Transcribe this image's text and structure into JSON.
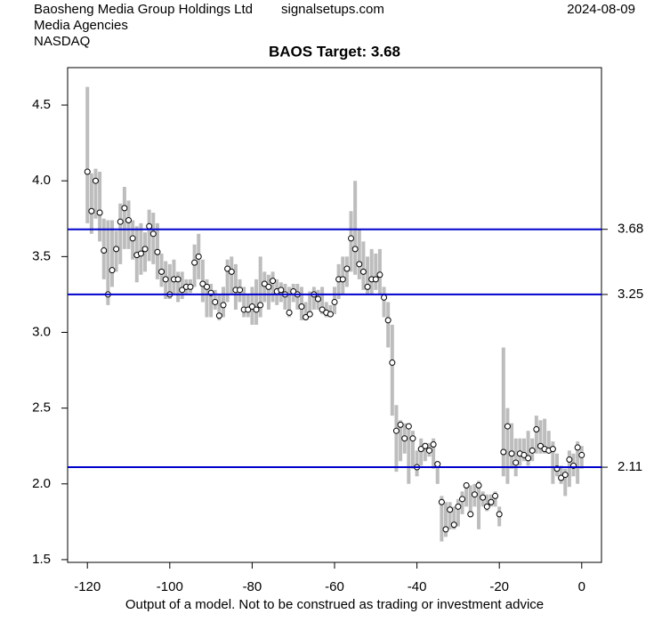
{
  "header": {
    "company": "Baosheng Media Group Holdings Ltd",
    "site": "signalsetups.com",
    "date": "2024-08-09",
    "sector": "Media Agencies",
    "exchange": "NASDAQ"
  },
  "chart_data": {
    "type": "range",
    "title": "BAOS Target: 3.68",
    "xlabel": "Output of a model. Not to be construed as trading or investment advice",
    "x": [
      -120,
      -119,
      -118,
      -117,
      -116,
      -115,
      -114,
      -113,
      -112,
      -111,
      -110,
      -109,
      -108,
      -107,
      -106,
      -105,
      -104,
      -103,
      -102,
      -101,
      -100,
      -99,
      -98,
      -97,
      -96,
      -95,
      -94,
      -93,
      -92,
      -91,
      -90,
      -89,
      -88,
      -87,
      -86,
      -85,
      -84,
      -83,
      -82,
      -81,
      -80,
      -79,
      -78,
      -77,
      -76,
      -75,
      -74,
      -73,
      -72,
      -71,
      -70,
      -69,
      -68,
      -67,
      -66,
      -65,
      -64,
      -63,
      -62,
      -61,
      -60,
      -59,
      -58,
      -57,
      -56,
      -55,
      -54,
      -53,
      -52,
      -51,
      -50,
      -49,
      -48,
      -47,
      -46,
      -45,
      -44,
      -43,
      -42,
      -41,
      -40,
      -39,
      -38,
      -37,
      -36,
      -35,
      -34,
      -33,
      -32,
      -31,
      -30,
      -29,
      -28,
      -27,
      -26,
      -25,
      -24,
      -23,
      -22,
      -21,
      -20,
      -19,
      -18,
      -17,
      -16,
      -15,
      -14,
      -13,
      -12,
      -11,
      -10,
      -9,
      -8,
      -7,
      -6,
      -5,
      -4,
      -3,
      -2,
      -1,
      0
    ],
    "close": [
      4.06,
      3.8,
      4.0,
      3.79,
      3.54,
      3.25,
      3.41,
      3.55,
      3.73,
      3.82,
      3.74,
      3.62,
      3.51,
      3.52,
      3.55,
      3.7,
      3.65,
      3.53,
      3.4,
      3.35,
      3.25,
      3.35,
      3.35,
      3.28,
      3.3,
      3.3,
      3.46,
      3.5,
      3.32,
      3.3,
      3.26,
      3.2,
      3.11,
      3.18,
      3.42,
      3.4,
      3.28,
      3.28,
      3.15,
      3.15,
      3.17,
      3.15,
      3.18,
      3.32,
      3.3,
      3.34,
      3.27,
      3.28,
      3.25,
      3.13,
      3.27,
      3.25,
      3.17,
      3.1,
      3.12,
      3.25,
      3.22,
      3.15,
      3.13,
      3.12,
      3.2,
      3.35,
      3.35,
      3.42,
      3.62,
      3.55,
      3.45,
      3.4,
      3.3,
      3.35,
      3.35,
      3.38,
      3.23,
      3.08,
      2.8,
      2.35,
      2.39,
      2.3,
      2.38,
      2.3,
      2.11,
      2.23,
      2.25,
      2.22,
      2.26,
      2.13,
      1.88,
      1.7,
      1.83,
      1.73,
      1.85,
      1.9,
      1.99,
      1.8,
      1.93,
      1.99,
      1.91,
      1.85,
      1.88,
      1.92,
      1.8,
      2.21,
      2.38,
      2.2,
      2.14,
      2.2,
      2.19,
      2.17,
      2.22,
      2.36,
      2.25,
      2.23,
      2.22,
      2.23,
      2.1,
      2.04,
      2.06,
      2.16,
      2.12,
      2.24,
      2.19
    ],
    "high": [
      4.62,
      4.05,
      4.08,
      4.06,
      3.75,
      3.74,
      3.74,
      3.67,
      3.85,
      3.96,
      3.87,
      3.74,
      3.7,
      3.72,
      3.66,
      3.81,
      3.79,
      3.72,
      3.52,
      3.47,
      3.45,
      3.48,
      3.4,
      3.4,
      3.35,
      3.35,
      3.58,
      3.65,
      3.48,
      3.35,
      3.32,
      3.28,
      3.25,
      3.3,
      3.48,
      3.5,
      3.45,
      3.35,
      3.3,
      3.25,
      3.3,
      3.35,
      3.5,
      3.4,
      3.38,
      3.4,
      3.35,
      3.33,
      3.32,
      3.3,
      3.32,
      3.32,
      3.3,
      3.2,
      3.27,
      3.3,
      3.28,
      3.3,
      3.2,
      3.18,
      3.3,
      3.45,
      3.5,
      3.5,
      3.8,
      4.0,
      3.68,
      3.6,
      3.5,
      3.55,
      3.52,
      3.55,
      3.3,
      3.2,
      3.05,
      2.52,
      2.42,
      2.4,
      2.4,
      2.35,
      2.22,
      2.3,
      2.27,
      2.27,
      2.3,
      2.15,
      1.92,
      1.88,
      1.88,
      1.85,
      1.9,
      1.95,
      2.0,
      1.99,
      2.0,
      2.02,
      1.95,
      1.93,
      1.93,
      1.95,
      1.85,
      2.9,
      2.5,
      2.4,
      2.3,
      2.3,
      2.3,
      2.35,
      2.3,
      2.45,
      2.42,
      2.43,
      2.35,
      2.28,
      2.2,
      2.12,
      2.1,
      2.22,
      2.2,
      2.28,
      2.25
    ],
    "low": [
      3.72,
      3.65,
      3.75,
      3.6,
      3.35,
      3.18,
      3.3,
      3.4,
      3.45,
      3.55,
      3.55,
      3.48,
      3.33,
      3.38,
      3.4,
      3.47,
      3.45,
      3.35,
      3.3,
      3.22,
      3.22,
      3.25,
      3.2,
      3.22,
      3.25,
      3.26,
      3.3,
      3.35,
      3.2,
      3.1,
      3.1,
      3.15,
      3.08,
      3.1,
      3.2,
      3.25,
      3.15,
      3.2,
      3.1,
      3.1,
      3.05,
      3.05,
      3.1,
      3.2,
      3.15,
      3.2,
      3.18,
      3.2,
      3.15,
      3.1,
      3.2,
      3.15,
      3.08,
      3.08,
      3.1,
      3.15,
      3.15,
      3.12,
      3.1,
      3.1,
      3.12,
      3.22,
      3.25,
      3.3,
      3.4,
      3.38,
      3.35,
      3.28,
      3.25,
      3.25,
      3.28,
      3.25,
      3.1,
      2.9,
      2.45,
      2.08,
      2.15,
      2.2,
      2.0,
      2.1,
      2.05,
      2.12,
      2.15,
      2.18,
      2.1,
      2.0,
      1.62,
      1.65,
      1.7,
      1.7,
      1.72,
      1.8,
      1.85,
      1.78,
      1.85,
      1.7,
      1.85,
      1.82,
      1.85,
      1.85,
      1.72,
      2.05,
      2.0,
      2.1,
      2.05,
      2.12,
      2.15,
      2.12,
      2.15,
      2.2,
      2.2,
      2.2,
      2.2,
      2.0,
      2.05,
      2.0,
      1.92,
      1.98,
      2.05,
      2.0,
      2.1
    ],
    "range_color": "#bdbdbd",
    "point_color": "#000000",
    "hline_color": "#0000cc",
    "hlines": [
      3.68,
      3.25,
      2.11
    ],
    "xlim": [
      -124.8,
      4.8
    ],
    "ylim": [
      1.482,
      4.747
    ],
    "xticks": [
      -120,
      -100,
      -80,
      -60,
      -40,
      -20,
      0
    ],
    "yticks": [
      1.5,
      {
        "value": 2,
        "label": "2.0"
      },
      2.5,
      {
        "value": 3,
        "label": "3.0"
      },
      3.5,
      {
        "value": 4,
        "label": "4.0"
      },
      4.5
    ]
  }
}
